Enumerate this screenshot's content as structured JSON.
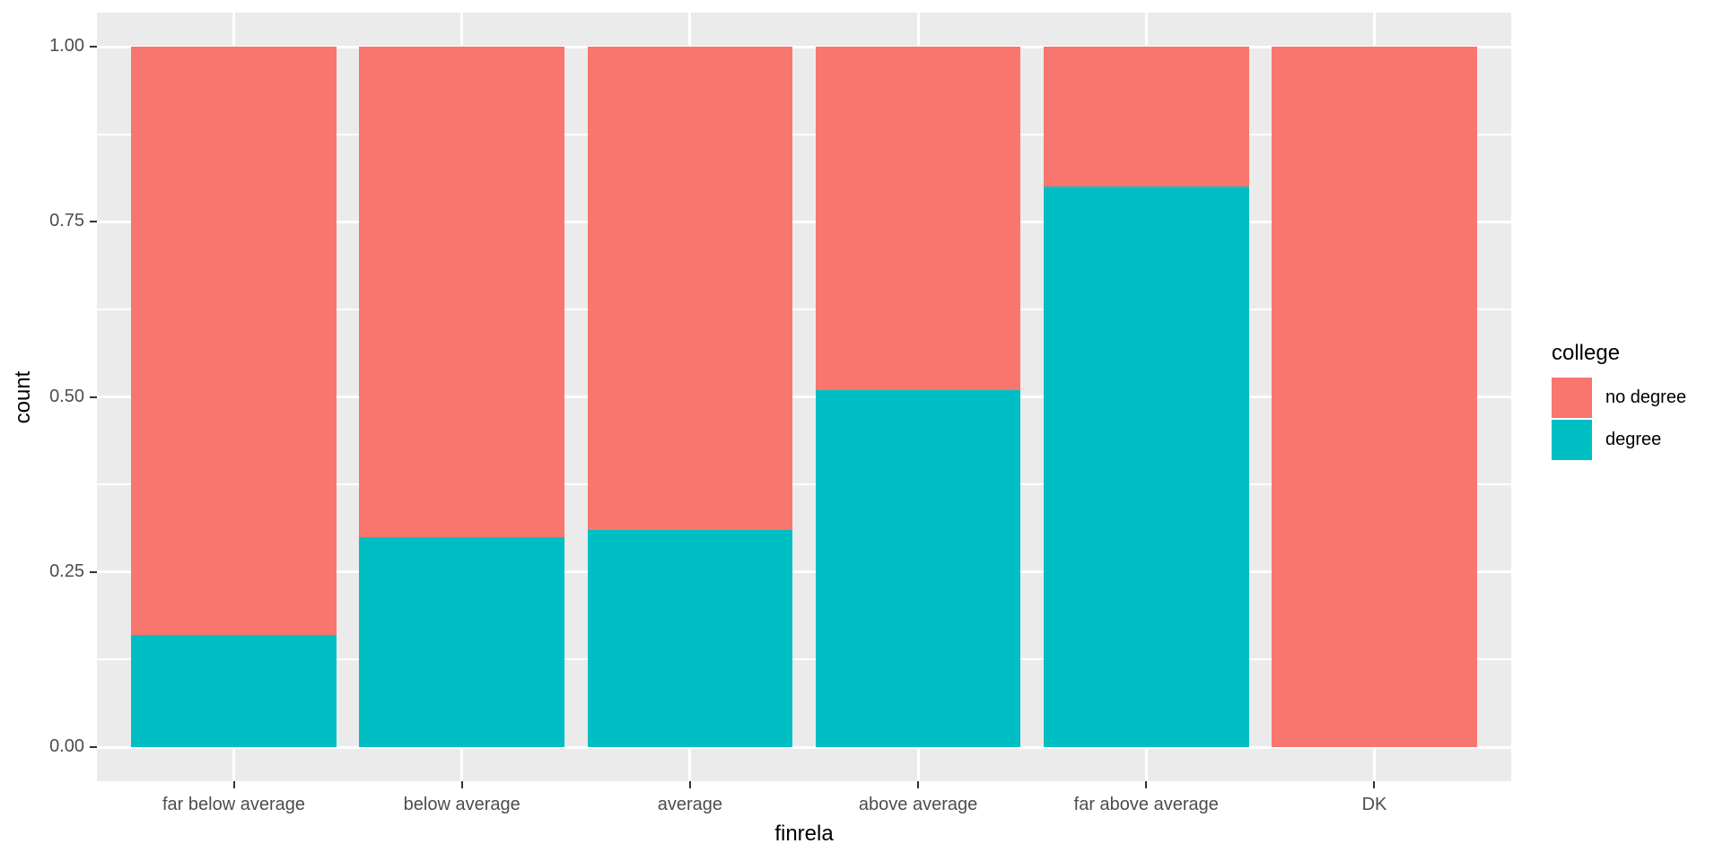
{
  "chart_data": {
    "type": "bar",
    "stacked": true,
    "normalized": "proportions (position=fill), 0 to 1",
    "title": "",
    "xlabel": "finrela",
    "ylabel": "count",
    "categories": [
      "far below average",
      "below average",
      "average",
      "above average",
      "far above average",
      "DK"
    ],
    "series": [
      {
        "name": "no degree",
        "color": "#F8766D",
        "values": [
          0.84,
          0.7,
          0.69,
          0.49,
          0.2,
          1.0
        ]
      },
      {
        "name": "degree",
        "color": "#00BFC4",
        "values": [
          0.16,
          0.3,
          0.31,
          0.51,
          0.8,
          0.0
        ]
      }
    ],
    "ylim": [
      0,
      1
    ],
    "y_tick_values": [
      0,
      0.25,
      0.5,
      0.75,
      1
    ],
    "y_ticks": [
      "0.00",
      "0.25",
      "0.50",
      "0.75",
      "1.00"
    ],
    "legend_title": "college",
    "legend_position": "right",
    "grid": true,
    "colors": {
      "panel_bg": "#EBEBEB",
      "grid": "#FFFFFF",
      "tick_label": "#4D4D4D",
      "axis_title": "#000000",
      "tick_mark": "#333333"
    }
  }
}
